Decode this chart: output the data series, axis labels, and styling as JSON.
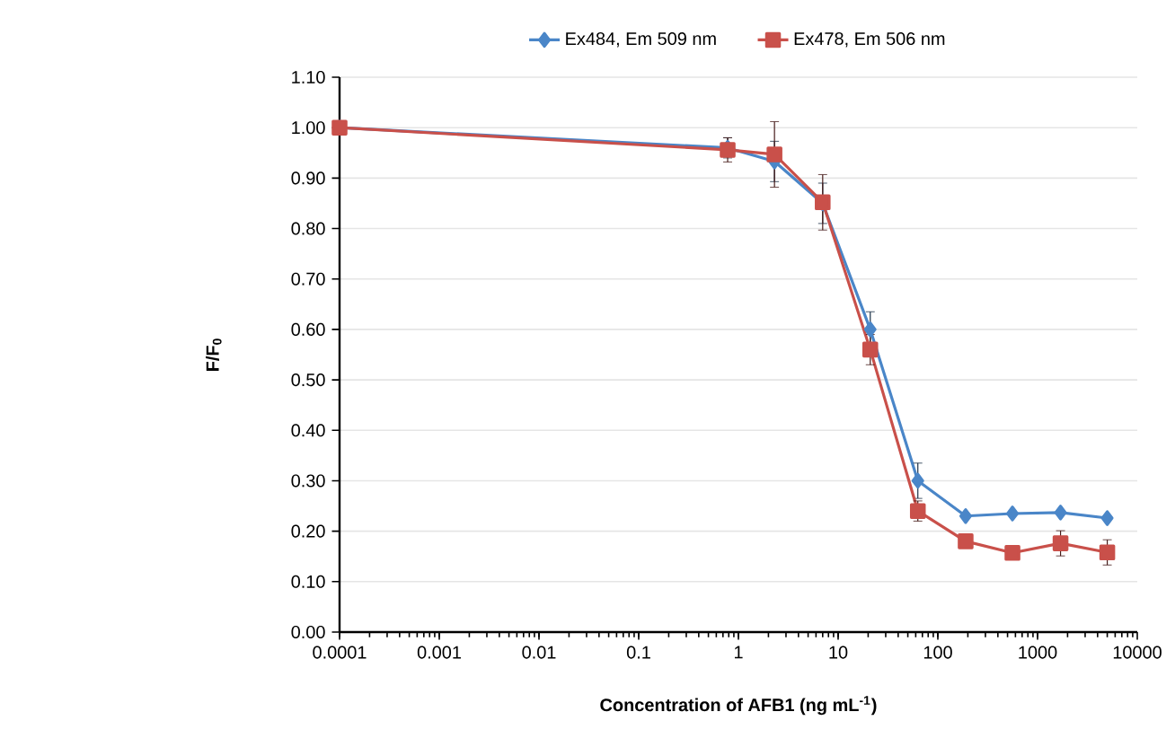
{
  "chart_data": {
    "type": "line",
    "xlabel": "Concentration of AFB1  (ng mL$^{-1}$)",
    "ylabel": "F/F$_{0}$",
    "x": [
      0.0001,
      0.78,
      2.3,
      7,
      21,
      63,
      190,
      560,
      1700,
      5000
    ],
    "series": [
      {
        "name": "Ex484, Em 509 nm",
        "color": "#4a86c8",
        "marker": "diamond",
        "values": [
          1.0,
          0.96,
          0.933,
          0.85,
          0.6,
          0.3,
          0.23,
          0.235,
          0.237,
          0.226
        ],
        "errors": [
          null,
          0.02,
          0.04,
          0.04,
          0.035,
          0.035,
          null,
          null,
          null,
          null
        ]
      },
      {
        "name": "Ex478, Em 506 nm",
        "color": "#c9504a",
        "marker": "square",
        "values": [
          1.0,
          0.956,
          0.947,
          0.852,
          0.56,
          0.24,
          0.18,
          0.157,
          0.176,
          0.158
        ],
        "errors": [
          null,
          0.024,
          0.065,
          0.055,
          0.03,
          0.02,
          null,
          null,
          0.025,
          0.025
        ]
      }
    ],
    "log": "x",
    "xlim": [
      0.0001,
      10000
    ],
    "xticks": [
      0.0001,
      0.001,
      0.01,
      0.1,
      1,
      10,
      100,
      1000,
      10000
    ],
    "ylim": [
      0,
      1.1
    ],
    "yticks": [
      {
        "value": 0,
        "label": "0.00"
      },
      {
        "value": 0.1,
        "label": "0.10"
      },
      {
        "value": 0.2,
        "label": "0.20"
      },
      {
        "value": 0.3,
        "label": "0.30"
      },
      {
        "value": 0.4,
        "label": "0.40"
      },
      {
        "value": 0.5,
        "label": "0.50"
      },
      {
        "value": 0.6,
        "label": "0.60"
      },
      {
        "value": 0.7,
        "label": "0.70"
      },
      {
        "value": 0.8,
        "label": "0.80"
      },
      {
        "value": 0.9,
        "label": "0.90"
      },
      {
        "value": 1.0,
        "label": "1.00"
      },
      {
        "value": 1.1,
        "label": "1.10"
      }
    ],
    "grid": "y",
    "legend": "top",
    "line_style": "solid"
  }
}
